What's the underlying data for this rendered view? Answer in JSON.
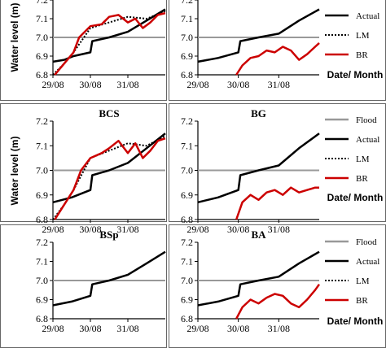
{
  "figure": {
    "ylabel": "Water level (m)",
    "xlabel": "Date/ Month",
    "legend": [
      {
        "label": "Flood",
        "color": "#999999",
        "style": "solid"
      },
      {
        "label": "Actual",
        "color": "#000000",
        "style": "solid"
      },
      {
        "label": "LM",
        "color": "#000000",
        "style": "dotted"
      },
      {
        "label": "BR",
        "color": "#cc0000",
        "style": "solid"
      }
    ],
    "colors": {
      "flood": "#999999",
      "actual": "#000000",
      "lm": "#000000",
      "br": "#cc0000"
    }
  },
  "chart_data": [
    {
      "type": "line",
      "panel": "top-left",
      "title": "",
      "categories": [
        "29/08",
        "30/08",
        "31/08"
      ],
      "yticks": [
        "6.8",
        "6.9",
        "7.0",
        "7.1",
        "7.2"
      ],
      "ylim": [
        6.8,
        7.2
      ],
      "grid": false,
      "series": [
        {
          "name": "Flood",
          "x": [
            0,
            3
          ],
          "values": [
            7.0,
            7.0
          ]
        },
        {
          "name": "Actual",
          "x": [
            0,
            0.3,
            0.55,
            1.0,
            1.05,
            1.5,
            2.0,
            2.5,
            3.0
          ],
          "values": [
            6.87,
            6.88,
            6.9,
            6.92,
            6.98,
            7.0,
            7.03,
            7.09,
            7.15
          ]
        },
        {
          "name": "LM",
          "x": [
            0,
            0.3,
            0.55,
            1.0,
            1.5,
            2.0,
            2.5,
            3.0
          ],
          "values": [
            6.8,
            6.86,
            6.92,
            7.05,
            7.08,
            7.11,
            7.1,
            7.14
          ]
        },
        {
          "name": "BR",
          "x": [
            0.05,
            0.3,
            0.55,
            0.7,
            1.0,
            1.3,
            1.5,
            1.75,
            2.0,
            2.2,
            2.4,
            2.6,
            2.8,
            3.0
          ],
          "values": [
            6.8,
            6.86,
            6.92,
            7.0,
            7.06,
            7.07,
            7.11,
            7.12,
            7.08,
            7.1,
            7.05,
            7.08,
            7.12,
            7.13
          ]
        }
      ]
    },
    {
      "type": "line",
      "panel": "top-right",
      "title": "",
      "categories": [
        "29/08",
        "30/08",
        "31/08"
      ],
      "yticks": [
        "6.8",
        "6.9",
        "7.0",
        "7.1",
        "7.2"
      ],
      "ylim": [
        6.8,
        7.2
      ],
      "grid": false,
      "series": [
        {
          "name": "Flood",
          "x": [
            0,
            3
          ],
          "values": [
            7.0,
            7.0
          ]
        },
        {
          "name": "Actual",
          "x": [
            0,
            0.5,
            1.0,
            1.05,
            1.5,
            2.0,
            2.5,
            3.0
          ],
          "values": [
            6.87,
            6.89,
            6.92,
            6.98,
            7.0,
            7.02,
            7.09,
            7.15
          ]
        },
        {
          "name": "BR",
          "x": [
            0.95,
            1.1,
            1.3,
            1.5,
            1.7,
            1.9,
            2.1,
            2.3,
            2.5,
            2.7,
            2.9,
            3.0
          ],
          "values": [
            6.8,
            6.85,
            6.89,
            6.9,
            6.93,
            6.92,
            6.95,
            6.93,
            6.88,
            6.91,
            6.95,
            6.97
          ]
        }
      ]
    },
    {
      "type": "line",
      "panel": "middle-left",
      "title": "BCS",
      "categories": [
        "29/08",
        "30/08",
        "31/08"
      ],
      "yticks": [
        "6.8",
        "6.9",
        "7.0",
        "7.1",
        "7.2"
      ],
      "ylim": [
        6.8,
        7.2
      ],
      "grid": false,
      "series": [
        {
          "name": "Flood",
          "x": [
            0,
            3
          ],
          "values": [
            7.0,
            7.0
          ]
        },
        {
          "name": "Actual",
          "x": [
            0,
            0.5,
            1.0,
            1.05,
            1.5,
            2.0,
            2.5,
            3.0
          ],
          "values": [
            6.87,
            6.89,
            6.92,
            6.98,
            7.0,
            7.03,
            7.09,
            7.15
          ]
        },
        {
          "name": "LM",
          "x": [
            0,
            0.3,
            0.55,
            1.0,
            1.5,
            2.0,
            2.5,
            3.0
          ],
          "values": [
            6.8,
            6.86,
            6.92,
            7.05,
            7.08,
            7.11,
            7.1,
            7.14
          ]
        },
        {
          "name": "BR",
          "x": [
            0.05,
            0.3,
            0.55,
            0.75,
            1.0,
            1.3,
            1.5,
            1.75,
            2.0,
            2.2,
            2.4,
            2.6,
            2.8,
            3.0
          ],
          "values": [
            6.8,
            6.86,
            6.92,
            7.0,
            7.05,
            7.07,
            7.09,
            7.12,
            7.07,
            7.11,
            7.05,
            7.08,
            7.12,
            7.13
          ]
        }
      ]
    },
    {
      "type": "line",
      "panel": "middle-right",
      "title": "BG",
      "categories": [
        "29/08",
        "30/08",
        "31/08"
      ],
      "yticks": [
        "6.8",
        "6.9",
        "7.0",
        "7.1",
        "7.2"
      ],
      "ylim": [
        6.8,
        7.2
      ],
      "grid": false,
      "series": [
        {
          "name": "Flood",
          "x": [
            0,
            3
          ],
          "values": [
            7.0,
            7.0
          ]
        },
        {
          "name": "Actual",
          "x": [
            0,
            0.5,
            1.0,
            1.05,
            1.5,
            2.0,
            2.5,
            3.0
          ],
          "values": [
            6.87,
            6.89,
            6.92,
            6.98,
            7.0,
            7.02,
            7.09,
            7.15
          ]
        },
        {
          "name": "BR",
          "x": [
            0.95,
            1.1,
            1.3,
            1.5,
            1.7,
            1.9,
            2.1,
            2.3,
            2.5,
            2.7,
            2.9,
            3.0
          ],
          "values": [
            6.8,
            6.87,
            6.9,
            6.88,
            6.91,
            6.92,
            6.9,
            6.93,
            6.91,
            6.92,
            6.93,
            6.93
          ]
        }
      ]
    },
    {
      "type": "line",
      "panel": "bottom-left",
      "title": "BSp",
      "categories": [
        "29/08",
        "30/08",
        "31/08"
      ],
      "yticks": [
        "6.8",
        "6.9",
        "7.0",
        "7.1",
        "7.2"
      ],
      "ylim": [
        6.8,
        7.2
      ],
      "grid": false,
      "series": [
        {
          "name": "Flood",
          "x": [
            0,
            3
          ],
          "values": [
            7.0,
            7.0
          ]
        },
        {
          "name": "Actual",
          "x": [
            0,
            0.5,
            1.0,
            1.05,
            1.5,
            2.0,
            2.5,
            3.0
          ],
          "values": [
            6.87,
            6.89,
            6.92,
            6.98,
            7.0,
            7.03,
            7.09,
            7.15
          ]
        }
      ]
    },
    {
      "type": "line",
      "panel": "bottom-right",
      "title": "BA",
      "categories": [
        "29/08",
        "30/08",
        "31/08"
      ],
      "yticks": [
        "6.8",
        "6.9",
        "7.0",
        "7.1",
        "7.2"
      ],
      "ylim": [
        6.8,
        7.2
      ],
      "grid": false,
      "series": [
        {
          "name": "Flood",
          "x": [
            0,
            3
          ],
          "values": [
            7.0,
            7.0
          ]
        },
        {
          "name": "Actual",
          "x": [
            0,
            0.5,
            1.0,
            1.05,
            1.5,
            2.0,
            2.5,
            3.0
          ],
          "values": [
            6.87,
            6.89,
            6.92,
            6.98,
            7.0,
            7.02,
            7.09,
            7.15
          ]
        },
        {
          "name": "BR",
          "x": [
            0.95,
            1.1,
            1.3,
            1.5,
            1.7,
            1.9,
            2.1,
            2.3,
            2.5,
            2.7,
            2.9,
            3.0
          ],
          "values": [
            6.8,
            6.86,
            6.9,
            6.88,
            6.91,
            6.93,
            6.92,
            6.88,
            6.86,
            6.9,
            6.95,
            6.98
          ]
        }
      ]
    }
  ]
}
